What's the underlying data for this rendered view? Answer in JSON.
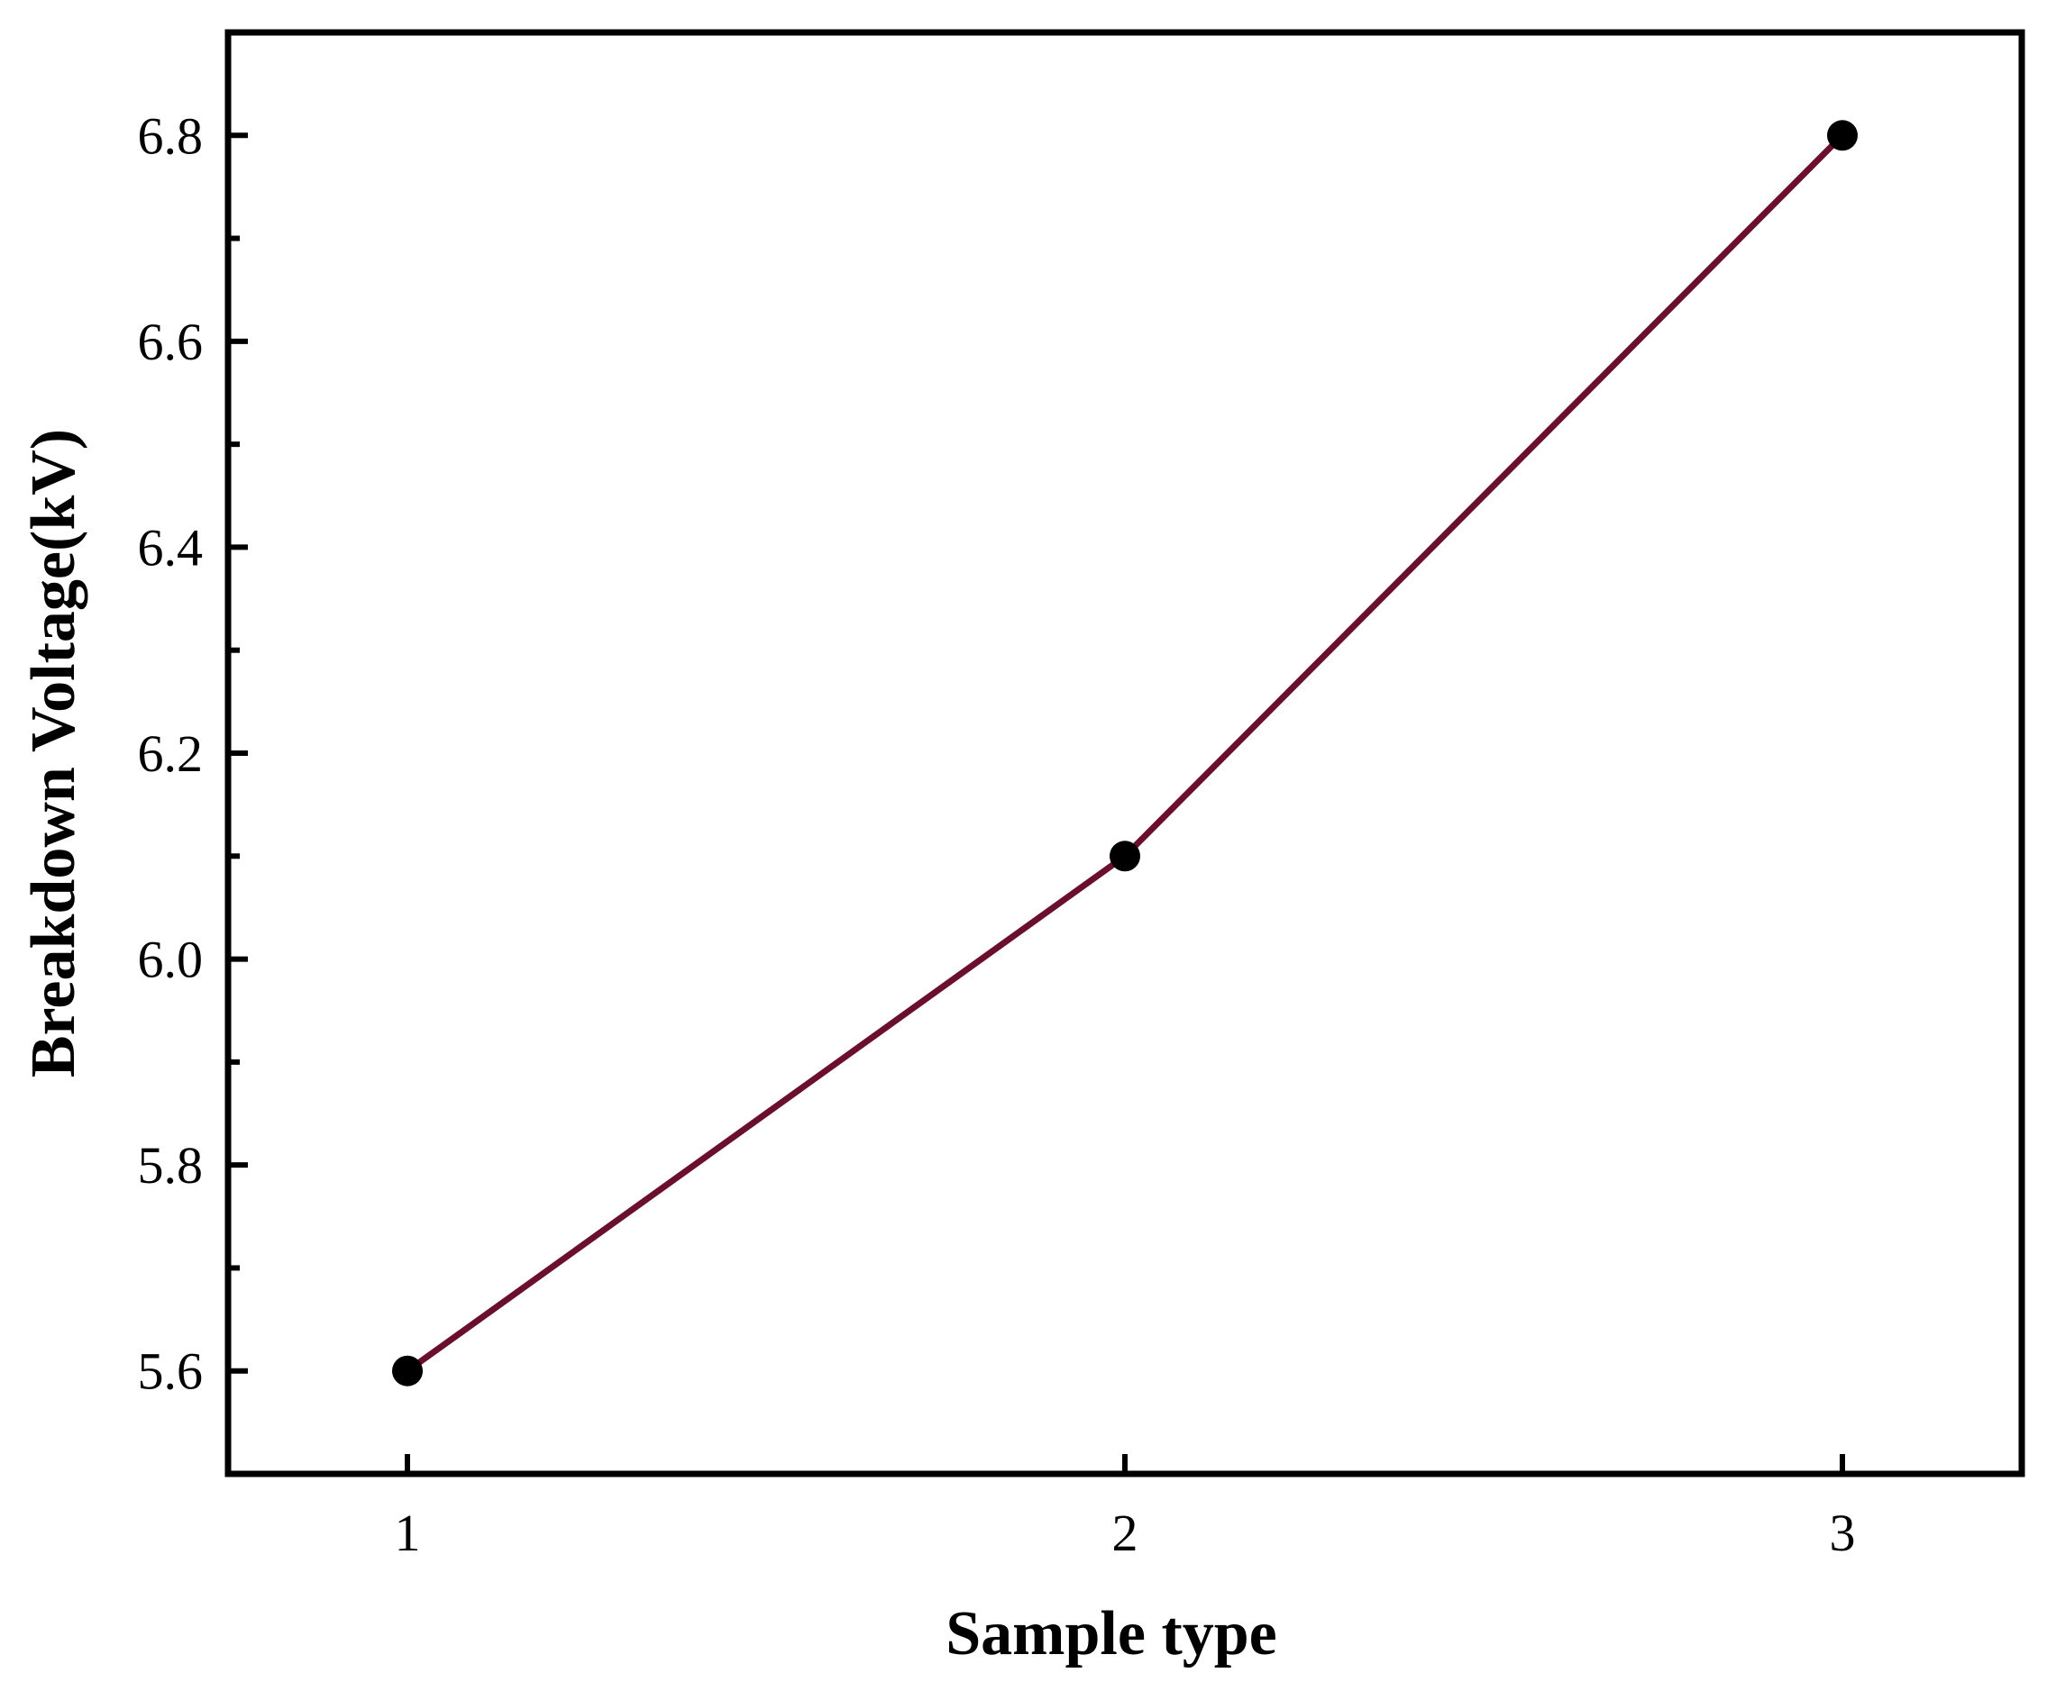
{
  "chart_data": {
    "type": "line",
    "title": "",
    "xlabel": "Sample type",
    "ylabel": "Breakdown Voltage(kV)",
    "x": [
      1,
      2,
      3
    ],
    "series": [
      {
        "values": [
          5.6,
          6.1,
          6.8
        ]
      }
    ],
    "xlim": [
      0.75,
      3.25
    ],
    "ylim": [
      5.5,
      6.9
    ],
    "x_ticks": [
      "1",
      "2",
      "3"
    ],
    "y_ticks": [
      "5.6",
      "5.8",
      "6.0",
      "6.2",
      "6.4",
      "6.6",
      "6.8"
    ],
    "grid": false,
    "legend": "none",
    "colors": {
      "line": "#6b0f2e",
      "marker": "#000000",
      "axes": "#000000"
    }
  }
}
